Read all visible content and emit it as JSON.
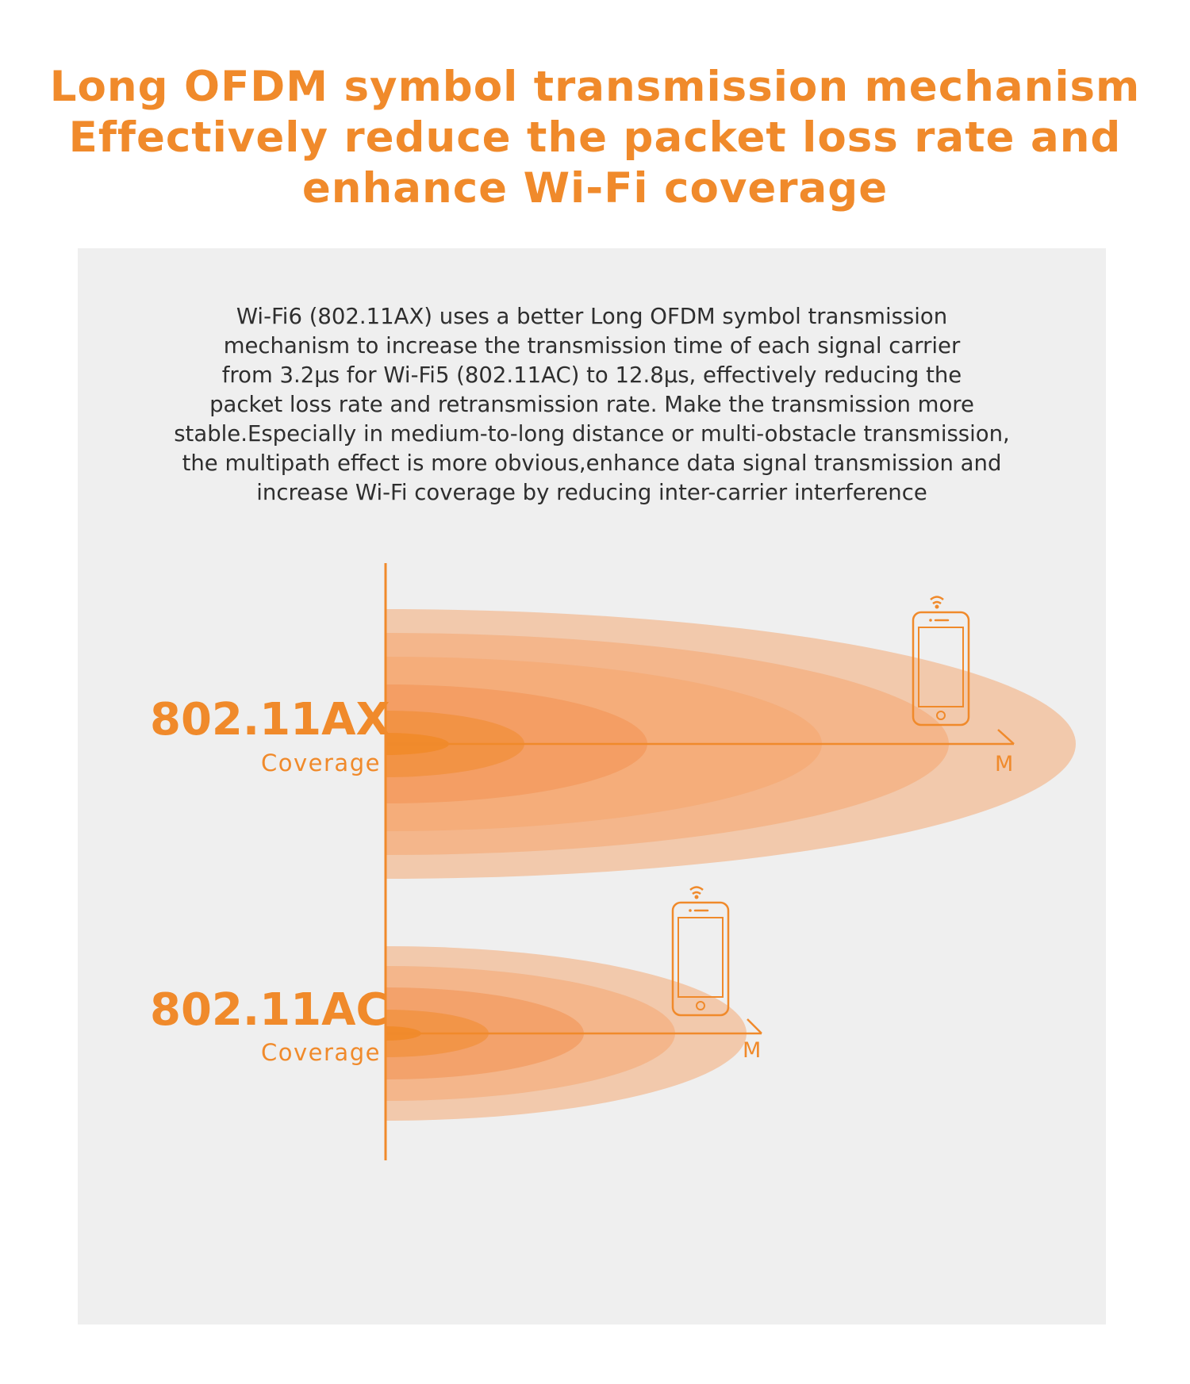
{
  "headline": {
    "lines": [
      "Long OFDM symbol transmission mechanism",
      "Effectively reduce the packet loss rate and",
      "enhance Wi-Fi coverage"
    ]
  },
  "description": {
    "lines": [
      "Wi-Fi6 (802.11AX) uses a better Long OFDM symbol transmission",
      "mechanism to increase the transmission time of each signal carrier",
      "from 3.2μs for Wi-Fi5 (802.11AC) to 12.8μs, effectively reducing the",
      "packet loss rate and retransmission rate. Make the transmission more",
      "stable.Especially in medium-to-long distance or multi-obstacle transmission,",
      "the multipath effect is more obvious,enhance data signal transmission and",
      "increase Wi-Fi coverage by reducing inter-carrier interference"
    ]
  },
  "diagram": {
    "ax": {
      "standard": "802.11AX",
      "caption": "Coverage",
      "unit": "M",
      "device_icon": "smartphone-wifi-icon"
    },
    "ac": {
      "standard": "802.11AC",
      "caption": "Coverage",
      "unit": "M",
      "device_icon": "smartphone-wifi-icon"
    }
  },
  "colors": {
    "accent": "#f08a2b",
    "panel_background": "#efefef",
    "body_text": "#2e2e2e",
    "wave_fill": "#f5a46a"
  }
}
